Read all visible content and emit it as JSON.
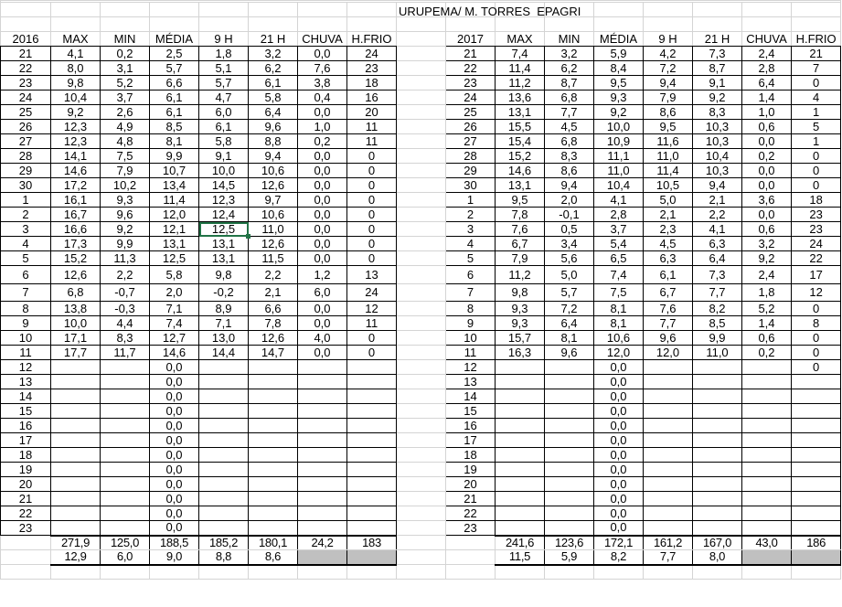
{
  "title": "URUPEMA/ M. TORRES  EPAGRI",
  "selected_cell": {
    "table": "left",
    "day": "3",
    "column": "9 H"
  },
  "colors": {
    "negative_highlight": "#ff0000",
    "selection": "#217346",
    "empty_total_fill": "#c0c0c0"
  },
  "tables": [
    {
      "id": "left",
      "headers": [
        "2016",
        "MAX",
        "MIN",
        "MÉDIA",
        "9 H",
        "21 H",
        "CHUVA",
        "H.FRIO"
      ],
      "rows": [
        [
          "21",
          "4,1",
          "0,2",
          "2,5",
          "1,8",
          "3,2",
          "0,0",
          "24"
        ],
        [
          "22",
          "8,0",
          "3,1",
          "5,7",
          "5,1",
          "6,2",
          "7,6",
          "23"
        ],
        [
          "23",
          "9,8",
          "5,2",
          "6,6",
          "5,7",
          "6,1",
          "3,8",
          "18"
        ],
        [
          "24",
          "10,4",
          "3,7",
          "6,1",
          "4,7",
          "5,8",
          "0,4",
          "16"
        ],
        [
          "25",
          "9,2",
          "2,6",
          "6,1",
          "6,0",
          "6,4",
          "0,0",
          "20"
        ],
        [
          "26",
          "12,3",
          "4,9",
          "8,5",
          "6,1",
          "9,6",
          "1,0",
          "11"
        ],
        [
          "27",
          "12,3",
          "4,8",
          "8,1",
          "5,8",
          "8,8",
          "0,2",
          "11"
        ],
        [
          "28",
          "14,1",
          "7,5",
          "9,9",
          "9,1",
          "9,4",
          "0,0",
          "0"
        ],
        [
          "29",
          "14,6",
          "7,9",
          "10,7",
          "10,0",
          "10,6",
          "0,0",
          "0"
        ],
        [
          "30",
          "17,2",
          "10,2",
          "13,4",
          "14,5",
          "12,6",
          "0,0",
          "0"
        ],
        [
          "1",
          "16,1",
          "9,3",
          "11,4",
          "12,3",
          "9,7",
          "0,0",
          "0"
        ],
        [
          "2",
          "16,7",
          "9,6",
          "12,0",
          "12,4",
          "10,6",
          "0,0",
          "0"
        ],
        [
          "3",
          "16,6",
          "9,2",
          "12,1",
          "12,5",
          "11,0",
          "0,0",
          "0"
        ],
        [
          "4",
          "17,3",
          "9,9",
          "13,1",
          "13,1",
          "12,6",
          "0,0",
          "0"
        ],
        [
          "5",
          "15,2",
          "11,3",
          "12,5",
          "13,1",
          "11,5",
          "0,0",
          "0"
        ],
        [
          "6",
          "12,6",
          "2,2",
          "5,8",
          "9,8",
          "2,2",
          "1,2",
          "13"
        ],
        [
          "7",
          "6,8",
          "-0,7",
          "2,0",
          "-0,2",
          "2,1",
          "6,0",
          "24"
        ],
        [
          "8",
          "13,8",
          "-0,3",
          "7,1",
          "8,9",
          "6,6",
          "0,0",
          "12"
        ],
        [
          "9",
          "10,0",
          "4,4",
          "7,4",
          "7,1",
          "7,8",
          "0,0",
          "11"
        ],
        [
          "10",
          "17,1",
          "8,3",
          "12,7",
          "13,0",
          "12,6",
          "4,0",
          "0"
        ],
        [
          "11",
          "17,7",
          "11,7",
          "14,6",
          "14,4",
          "14,7",
          "0,0",
          "0"
        ],
        [
          "12",
          "",
          "",
          "0,0",
          "",
          "",
          "",
          ""
        ],
        [
          "13",
          "",
          "",
          "0,0",
          "",
          "",
          "",
          ""
        ],
        [
          "14",
          "",
          "",
          "0,0",
          "",
          "",
          "",
          ""
        ],
        [
          "15",
          "",
          "",
          "0,0",
          "",
          "",
          "",
          ""
        ],
        [
          "16",
          "",
          "",
          "0,0",
          "",
          "",
          "",
          ""
        ],
        [
          "17",
          "",
          "",
          "0,0",
          "",
          "",
          "",
          ""
        ],
        [
          "18",
          "",
          "",
          "0,0",
          "",
          "",
          "",
          ""
        ],
        [
          "19",
          "",
          "",
          "0,0",
          "",
          "",
          "",
          ""
        ],
        [
          "20",
          "",
          "",
          "0,0",
          "",
          "",
          "",
          ""
        ],
        [
          "21",
          "",
          "",
          "0,0",
          "",
          "",
          "",
          ""
        ],
        [
          "22",
          "",
          "",
          "0,0",
          "",
          "",
          "",
          ""
        ],
        [
          "23",
          "",
          "",
          "0,0",
          "",
          "",
          "",
          ""
        ]
      ],
      "red_cells": [
        [
          16,
          2
        ],
        [
          17,
          2
        ]
      ],
      "totals": [
        "271,9",
        "125,0",
        "188,5",
        "185,2",
        "180,1",
        "24,2",
        "183"
      ],
      "averages": [
        "12,9",
        "6,0",
        "9,0",
        "8,8",
        "8,6",
        "",
        ""
      ]
    },
    {
      "id": "right",
      "headers": [
        "2017",
        "MAX",
        "MIN",
        "MÉDIA",
        "9 H",
        "21 H",
        "CHUVA",
        "H.FRIO"
      ],
      "rows": [
        [
          "21",
          "7,4",
          "3,2",
          "5,9",
          "4,2",
          "7,3",
          "2,4",
          "21"
        ],
        [
          "22",
          "11,4",
          "6,2",
          "8,4",
          "7,2",
          "8,7",
          "2,8",
          "7"
        ],
        [
          "23",
          "11,2",
          "8,7",
          "9,5",
          "9,4",
          "9,1",
          "6,4",
          "0"
        ],
        [
          "24",
          "13,6",
          "6,8",
          "9,3",
          "7,9",
          "9,2",
          "1,4",
          "4"
        ],
        [
          "25",
          "13,1",
          "7,7",
          "9,2",
          "8,6",
          "8,3",
          "1,0",
          "1"
        ],
        [
          "26",
          "15,5",
          "4,5",
          "10,0",
          "9,5",
          "10,3",
          "0,6",
          "5"
        ],
        [
          "27",
          "15,4",
          "6,8",
          "10,9",
          "11,6",
          "10,3",
          "0,0",
          "1"
        ],
        [
          "28",
          "15,2",
          "8,3",
          "11,1",
          "11,0",
          "10,4",
          "0,2",
          "0"
        ],
        [
          "29",
          "14,6",
          "8,6",
          "11,0",
          "11,4",
          "10,3",
          "0,0",
          "0"
        ],
        [
          "30",
          "13,1",
          "9,4",
          "10,4",
          "10,5",
          "9,4",
          "0,0",
          "0"
        ],
        [
          "1",
          "9,5",
          "2,0",
          "4,1",
          "5,0",
          "2,1",
          "3,6",
          "18"
        ],
        [
          "2",
          "7,8",
          "-0,1",
          "2,8",
          "2,1",
          "2,2",
          "0,0",
          "23"
        ],
        [
          "3",
          "7,6",
          "0,5",
          "3,7",
          "2,3",
          "4,1",
          "0,6",
          "23"
        ],
        [
          "4",
          "6,7",
          "3,4",
          "5,4",
          "4,5",
          "6,3",
          "3,2",
          "24"
        ],
        [
          "5",
          "7,9",
          "5,6",
          "6,5",
          "6,3",
          "6,4",
          "9,2",
          "22"
        ],
        [
          "6",
          "11,2",
          "5,0",
          "7,4",
          "6,1",
          "7,3",
          "2,4",
          "17"
        ],
        [
          "7",
          "9,8",
          "5,7",
          "7,5",
          "6,7",
          "7,7",
          "1,8",
          "12"
        ],
        [
          "8",
          "9,3",
          "7,2",
          "8,1",
          "7,6",
          "8,2",
          "5,2",
          "0"
        ],
        [
          "9",
          "9,3",
          "6,4",
          "8,1",
          "7,7",
          "8,5",
          "1,4",
          "8"
        ],
        [
          "10",
          "15,7",
          "8,1",
          "10,6",
          "9,6",
          "9,9",
          "0,6",
          "0"
        ],
        [
          "11",
          "16,3",
          "9,6",
          "12,0",
          "12,0",
          "11,0",
          "0,2",
          "0"
        ],
        [
          "12",
          "",
          "",
          "0,0",
          "",
          "",
          "",
          "0"
        ],
        [
          "13",
          "",
          "",
          "0,0",
          "",
          "",
          "",
          ""
        ],
        [
          "14",
          "",
          "",
          "0,0",
          "",
          "",
          "",
          ""
        ],
        [
          "15",
          "",
          "",
          "0,0",
          "",
          "",
          "",
          ""
        ],
        [
          "16",
          "",
          "",
          "0,0",
          "",
          "",
          "",
          ""
        ],
        [
          "17",
          "",
          "",
          "0,0",
          "",
          "",
          "",
          ""
        ],
        [
          "18",
          "",
          "",
          "0,0",
          "",
          "",
          "",
          ""
        ],
        [
          "19",
          "",
          "",
          "0,0",
          "",
          "",
          "",
          ""
        ],
        [
          "20",
          "",
          "",
          "0,0",
          "",
          "",
          "",
          ""
        ],
        [
          "21",
          "",
          "",
          "0,0",
          "",
          "",
          "",
          ""
        ],
        [
          "22",
          "",
          "",
          "0,0",
          "",
          "",
          "",
          ""
        ],
        [
          "23",
          "",
          "",
          "0,0",
          "",
          "",
          "",
          ""
        ]
      ],
      "red_cells": [
        [
          11,
          2
        ]
      ],
      "totals": [
        "241,6",
        "123,6",
        "172,1",
        "161,2",
        "167,0",
        "43,0",
        "186"
      ],
      "averages": [
        "11,5",
        "5,9",
        "8,2",
        "7,7",
        "8,0",
        "",
        ""
      ]
    }
  ]
}
